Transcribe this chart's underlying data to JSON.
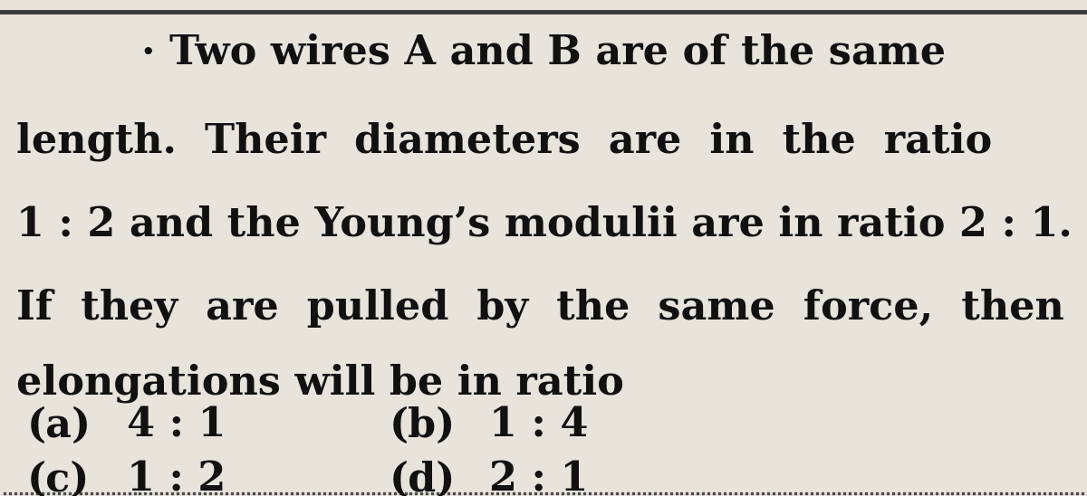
{
  "background_color": "#e8e4dc",
  "top_line_color": "#3a3a3a",
  "bottom_dots_color": "#4a4a4a",
  "text_color": "#111111",
  "line1": "· Two wires A and B are of the same",
  "line2": "length.  Their  diameters  are  in  the  ratio",
  "line3": "1 : 2 and the Young’s modulii are in ratio 2 : 1.",
  "line4": "If  they  are  pulled  by  the  same  force,  then",
  "line5": "elongations will be in ratio",
  "opt_a_label": "(a)",
  "opt_a_val": "4 : 1",
  "opt_b_label": "(b)",
  "opt_b_val": "1 : 4",
  "opt_c_label": "(c)",
  "opt_c_val": "1 : 2",
  "opt_d_label": "(d)",
  "opt_d_val": "2 : 1",
  "font_size_main": 32,
  "font_size_opts": 32,
  "font_family": "DejaVu Serif",
  "font_weight": "bold",
  "fig_width": 12.0,
  "fig_height": 5.48,
  "dpi": 100
}
